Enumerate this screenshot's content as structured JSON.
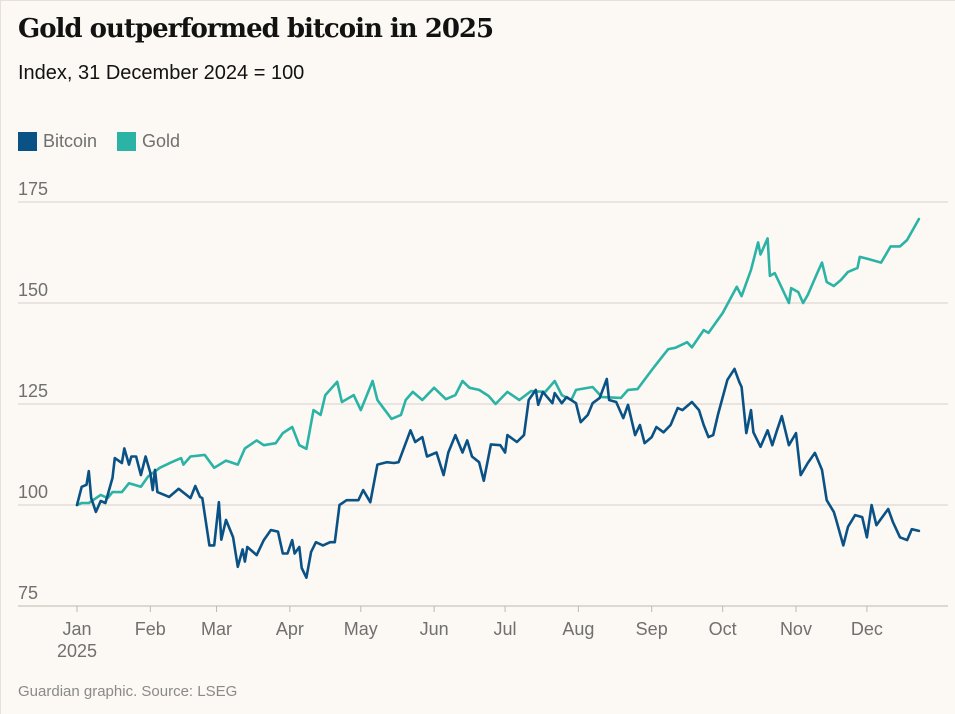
{
  "chart_data": {
    "type": "line",
    "title": "Gold outperformed bitcoin in 2025",
    "subtitle": "Index, 31 December 2024 = 100",
    "source": "Guardian graphic. Source: LSEG",
    "xlabel": "",
    "ylabel": "",
    "x_unit": "day of year 2025",
    "xlim": [
      0,
      364
    ],
    "ylim": [
      75,
      175
    ],
    "yticks": [
      "75",
      "100",
      "125",
      "150",
      "175"
    ],
    "ytick_values": [
      75,
      100,
      125,
      150,
      175
    ],
    "xticks": [
      {
        "label": "Jan",
        "sub": "2025",
        "day": 0
      },
      {
        "label": "Feb",
        "day": 31
      },
      {
        "label": "Mar",
        "day": 59
      },
      {
        "label": "Apr",
        "day": 90
      },
      {
        "label": "May",
        "day": 120
      },
      {
        "label": "Jun",
        "day": 151
      },
      {
        "label": "Jul",
        "day": 181
      },
      {
        "label": "Aug",
        "day": 212
      },
      {
        "label": "Sep",
        "day": 243
      },
      {
        "label": "Oct",
        "day": 273
      },
      {
        "label": "Nov",
        "day": 304
      },
      {
        "label": "Dec",
        "day": 334
      }
    ],
    "grid": true,
    "legend_position": "top-left",
    "series": [
      {
        "name": "Bitcoin",
        "color": "#0a5285",
        "points": [
          [
            0,
            100
          ],
          [
            2,
            104.5
          ],
          [
            4,
            105
          ],
          [
            5,
            108.4
          ],
          [
            6,
            101.7
          ],
          [
            8,
            98.3
          ],
          [
            10,
            101
          ],
          [
            12,
            100.5
          ],
          [
            15,
            106.7
          ],
          [
            16,
            111.6
          ],
          [
            19,
            110.4
          ],
          [
            20,
            114
          ],
          [
            22,
            110
          ],
          [
            23,
            112
          ],
          [
            25,
            112
          ],
          [
            27,
            107.4
          ],
          [
            29,
            112
          ],
          [
            31,
            108
          ],
          [
            32,
            103.7
          ],
          [
            33,
            108.7
          ],
          [
            34,
            103.2
          ],
          [
            39,
            102
          ],
          [
            43,
            104
          ],
          [
            48,
            101.7
          ],
          [
            50,
            104.7
          ],
          [
            52,
            102
          ],
          [
            53,
            101.7
          ],
          [
            56,
            90
          ],
          [
            58,
            90
          ],
          [
            60,
            100.7
          ],
          [
            61,
            91.4
          ],
          [
            63,
            96.3
          ],
          [
            66,
            92
          ],
          [
            68,
            84.7
          ],
          [
            70,
            89
          ],
          [
            71,
            86
          ],
          [
            72,
            89.6
          ],
          [
            76,
            87.6
          ],
          [
            79,
            91.3
          ],
          [
            82,
            93.8
          ],
          [
            85,
            93.4
          ],
          [
            87,
            88
          ],
          [
            89,
            88
          ],
          [
            91,
            91.3
          ],
          [
            92,
            88
          ],
          [
            94,
            89.6
          ],
          [
            95,
            84.4
          ],
          [
            97,
            82
          ],
          [
            99,
            88.4
          ],
          [
            101,
            90.8
          ],
          [
            104,
            90
          ],
          [
            107,
            90.8
          ],
          [
            109,
            90.8
          ],
          [
            111,
            100
          ],
          [
            114,
            101.2
          ],
          [
            119,
            101.2
          ],
          [
            121,
            103.7
          ],
          [
            124,
            100.7
          ],
          [
            127,
            110
          ],
          [
            131,
            110.6
          ],
          [
            134,
            110.4
          ],
          [
            136,
            110.6
          ],
          [
            141,
            118.5
          ],
          [
            143,
            115.6
          ],
          [
            146,
            116.8
          ],
          [
            148,
            112
          ],
          [
            152,
            113
          ],
          [
            155,
            107.4
          ],
          [
            157,
            113
          ],
          [
            160,
            117.3
          ],
          [
            163,
            113
          ],
          [
            165,
            116
          ],
          [
            167,
            112
          ],
          [
            170,
            110.6
          ],
          [
            172,
            106
          ],
          [
            175,
            115
          ],
          [
            179,
            114.8
          ],
          [
            181,
            113
          ],
          [
            182,
            117.3
          ],
          [
            186,
            115.6
          ],
          [
            189,
            117.3
          ],
          [
            191,
            126
          ],
          [
            194,
            128.5
          ],
          [
            195,
            124.8
          ],
          [
            197,
            128
          ],
          [
            201,
            125.2
          ],
          [
            202,
            127.7
          ],
          [
            205,
            125.2
          ],
          [
            207,
            126.7
          ],
          [
            211,
            125.2
          ],
          [
            213,
            120.5
          ],
          [
            216,
            122.3
          ],
          [
            218,
            125.2
          ],
          [
            221,
            126.5
          ],
          [
            224,
            131.2
          ],
          [
            225,
            126
          ],
          [
            228,
            125.5
          ],
          [
            231,
            121.5
          ],
          [
            233,
            124.8
          ],
          [
            236,
            117.3
          ],
          [
            238,
            119.8
          ],
          [
            240,
            115.3
          ],
          [
            243,
            116.8
          ],
          [
            245,
            119.3
          ],
          [
            248,
            118
          ],
          [
            251,
            119.8
          ],
          [
            254,
            124
          ],
          [
            256,
            123.5
          ],
          [
            260,
            125.5
          ],
          [
            263,
            123.5
          ],
          [
            265,
            119.8
          ],
          [
            267,
            116.8
          ],
          [
            269,
            117.3
          ],
          [
            271,
            122.3
          ],
          [
            275,
            131
          ],
          [
            278,
            133.7
          ],
          [
            280,
            130.5
          ],
          [
            281,
            129.2
          ],
          [
            283,
            117.8
          ],
          [
            285,
            123.5
          ],
          [
            286,
            118
          ],
          [
            289,
            114.4
          ],
          [
            292,
            118.5
          ],
          [
            294,
            114.8
          ],
          [
            296,
            118.5
          ],
          [
            298,
            122
          ],
          [
            301,
            114.8
          ],
          [
            304,
            117.8
          ],
          [
            306,
            107.4
          ],
          [
            309,
            110.4
          ],
          [
            312,
            112.9
          ],
          [
            315,
            108.7
          ],
          [
            317,
            101.2
          ],
          [
            320,
            98.3
          ],
          [
            321,
            96.3
          ],
          [
            324,
            90
          ],
          [
            326,
            94.6
          ],
          [
            329,
            97.5
          ],
          [
            332,
            97
          ],
          [
            334,
            92
          ],
          [
            336,
            100
          ],
          [
            338,
            95
          ],
          [
            343,
            99
          ],
          [
            345,
            95.8
          ],
          [
            348,
            92
          ],
          [
            351,
            91.3
          ],
          [
            353,
            94
          ],
          [
            356,
            93.6
          ]
        ]
      },
      {
        "name": "Gold",
        "color": "#2bb3a6",
        "points": [
          [
            0,
            100
          ],
          [
            2,
            100.5
          ],
          [
            5,
            100.5
          ],
          [
            10,
            102.5
          ],
          [
            13,
            101.7
          ],
          [
            15,
            103.2
          ],
          [
            19,
            103.2
          ],
          [
            22,
            105.4
          ],
          [
            27,
            104.5
          ],
          [
            30,
            107
          ],
          [
            35,
            109.2
          ],
          [
            40,
            110.6
          ],
          [
            44,
            111.6
          ],
          [
            45,
            110
          ],
          [
            48,
            112
          ],
          [
            54,
            112.4
          ],
          [
            58,
            109.2
          ],
          [
            63,
            111
          ],
          [
            68,
            110
          ],
          [
            71,
            114
          ],
          [
            76,
            116
          ],
          [
            79,
            114.8
          ],
          [
            84,
            115.3
          ],
          [
            87,
            117.8
          ],
          [
            91,
            119.3
          ],
          [
            94,
            114.8
          ],
          [
            97,
            113.9
          ],
          [
            100,
            123.5
          ],
          [
            103,
            122.3
          ],
          [
            105,
            127.2
          ],
          [
            110,
            130.5
          ],
          [
            112,
            125.5
          ],
          [
            117,
            127.2
          ],
          [
            120,
            123.5
          ],
          [
            125,
            130.7
          ],
          [
            127,
            126
          ],
          [
            133,
            121.3
          ],
          [
            137,
            122.3
          ],
          [
            139,
            126
          ],
          [
            142,
            128
          ],
          [
            146,
            126
          ],
          [
            151,
            129
          ],
          [
            156,
            126.2
          ],
          [
            160,
            127.2
          ],
          [
            163,
            130.7
          ],
          [
            166,
            129
          ],
          [
            170,
            128.5
          ],
          [
            174,
            127
          ],
          [
            177,
            125
          ],
          [
            182,
            128
          ],
          [
            187,
            126
          ],
          [
            192,
            128.2
          ],
          [
            198,
            128
          ],
          [
            202,
            130.7
          ],
          [
            205,
            127.2
          ],
          [
            209,
            126
          ],
          [
            211,
            128.5
          ],
          [
            218,
            129.2
          ],
          [
            222,
            126.7
          ],
          [
            230,
            126.5
          ],
          [
            233,
            128.5
          ],
          [
            237,
            128.7
          ],
          [
            243,
            133.4
          ],
          [
            247,
            136.4
          ],
          [
            250,
            138.6
          ],
          [
            253,
            138.9
          ],
          [
            258,
            140.3
          ],
          [
            260,
            139
          ],
          [
            265,
            143.3
          ],
          [
            267,
            142.6
          ],
          [
            273,
            147.5
          ],
          [
            279,
            154
          ],
          [
            281,
            151.7
          ],
          [
            285,
            158.2
          ],
          [
            288,
            165
          ],
          [
            289,
            162
          ],
          [
            292,
            166
          ],
          [
            293,
            156.7
          ],
          [
            295,
            157.4
          ],
          [
            297,
            155
          ],
          [
            301,
            150
          ],
          [
            302,
            153.7
          ],
          [
            305,
            152.7
          ],
          [
            307,
            150
          ],
          [
            309,
            152
          ],
          [
            313,
            157.4
          ],
          [
            315,
            160
          ],
          [
            317,
            155.2
          ],
          [
            320,
            154.2
          ],
          [
            323,
            155.7
          ],
          [
            326,
            157.7
          ],
          [
            330,
            158.7
          ],
          [
            331,
            161.4
          ],
          [
            334,
            161
          ],
          [
            340,
            160
          ],
          [
            344,
            164
          ],
          [
            348,
            164
          ],
          [
            351,
            165.6
          ],
          [
            356,
            170.8
          ]
        ]
      }
    ]
  }
}
